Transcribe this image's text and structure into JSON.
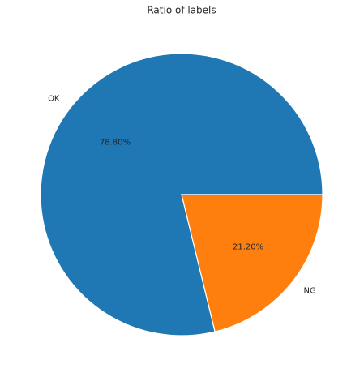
{
  "chart_data": {
    "type": "pie",
    "title": "Ratio of labels",
    "categories": [
      "OK",
      "NG"
    ],
    "values": [
      78.8,
      21.2
    ],
    "value_labels": [
      "78.80%",
      "21.20%"
    ],
    "colors": [
      "#1f77b4",
      "#ff7f0e"
    ]
  }
}
